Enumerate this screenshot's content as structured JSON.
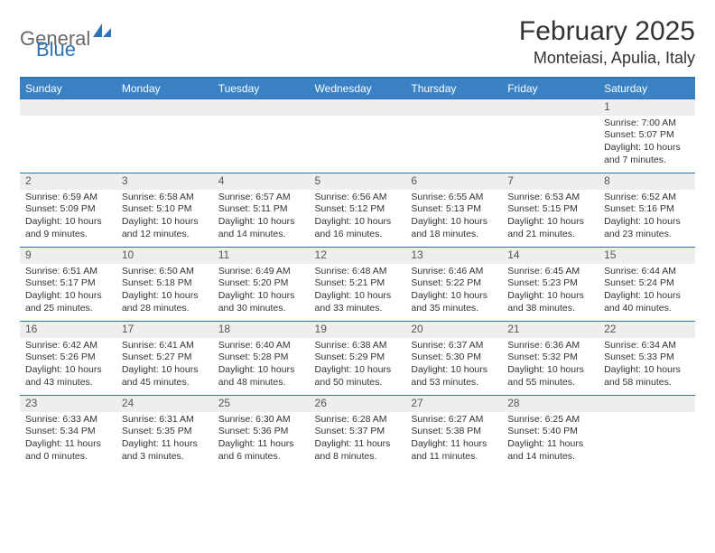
{
  "logo": {
    "part1": "General",
    "part2": "Blue"
  },
  "title": "February 2025",
  "location": "Monteiasi, Apulia, Italy",
  "colors": {
    "header_bg": "#3a82c4",
    "border": "#2d72b8",
    "daynum_bg": "#eeeeee",
    "text": "#333333",
    "logo_gray": "#6a6a6a",
    "logo_blue": "#2d72b8",
    "page_bg": "#ffffff"
  },
  "fonts": {
    "title_size_pt": 22,
    "location_size_pt": 13,
    "dayheader_size_pt": 9,
    "cell_size_pt": 8
  },
  "day_headers": [
    "Sunday",
    "Monday",
    "Tuesday",
    "Wednesday",
    "Thursday",
    "Friday",
    "Saturday"
  ],
  "weeks": [
    [
      null,
      null,
      null,
      null,
      null,
      null,
      {
        "n": "1",
        "sr": "7:00 AM",
        "ss": "5:07 PM",
        "dl": "10 hours and 7 minutes."
      }
    ],
    [
      {
        "n": "2",
        "sr": "6:59 AM",
        "ss": "5:09 PM",
        "dl": "10 hours and 9 minutes."
      },
      {
        "n": "3",
        "sr": "6:58 AM",
        "ss": "5:10 PM",
        "dl": "10 hours and 12 minutes."
      },
      {
        "n": "4",
        "sr": "6:57 AM",
        "ss": "5:11 PM",
        "dl": "10 hours and 14 minutes."
      },
      {
        "n": "5",
        "sr": "6:56 AM",
        "ss": "5:12 PM",
        "dl": "10 hours and 16 minutes."
      },
      {
        "n": "6",
        "sr": "6:55 AM",
        "ss": "5:13 PM",
        "dl": "10 hours and 18 minutes."
      },
      {
        "n": "7",
        "sr": "6:53 AM",
        "ss": "5:15 PM",
        "dl": "10 hours and 21 minutes."
      },
      {
        "n": "8",
        "sr": "6:52 AM",
        "ss": "5:16 PM",
        "dl": "10 hours and 23 minutes."
      }
    ],
    [
      {
        "n": "9",
        "sr": "6:51 AM",
        "ss": "5:17 PM",
        "dl": "10 hours and 25 minutes."
      },
      {
        "n": "10",
        "sr": "6:50 AM",
        "ss": "5:18 PM",
        "dl": "10 hours and 28 minutes."
      },
      {
        "n": "11",
        "sr": "6:49 AM",
        "ss": "5:20 PM",
        "dl": "10 hours and 30 minutes."
      },
      {
        "n": "12",
        "sr": "6:48 AM",
        "ss": "5:21 PM",
        "dl": "10 hours and 33 minutes."
      },
      {
        "n": "13",
        "sr": "6:46 AM",
        "ss": "5:22 PM",
        "dl": "10 hours and 35 minutes."
      },
      {
        "n": "14",
        "sr": "6:45 AM",
        "ss": "5:23 PM",
        "dl": "10 hours and 38 minutes."
      },
      {
        "n": "15",
        "sr": "6:44 AM",
        "ss": "5:24 PM",
        "dl": "10 hours and 40 minutes."
      }
    ],
    [
      {
        "n": "16",
        "sr": "6:42 AM",
        "ss": "5:26 PM",
        "dl": "10 hours and 43 minutes."
      },
      {
        "n": "17",
        "sr": "6:41 AM",
        "ss": "5:27 PM",
        "dl": "10 hours and 45 minutes."
      },
      {
        "n": "18",
        "sr": "6:40 AM",
        "ss": "5:28 PM",
        "dl": "10 hours and 48 minutes."
      },
      {
        "n": "19",
        "sr": "6:38 AM",
        "ss": "5:29 PM",
        "dl": "10 hours and 50 minutes."
      },
      {
        "n": "20",
        "sr": "6:37 AM",
        "ss": "5:30 PM",
        "dl": "10 hours and 53 minutes."
      },
      {
        "n": "21",
        "sr": "6:36 AM",
        "ss": "5:32 PM",
        "dl": "10 hours and 55 minutes."
      },
      {
        "n": "22",
        "sr": "6:34 AM",
        "ss": "5:33 PM",
        "dl": "10 hours and 58 minutes."
      }
    ],
    [
      {
        "n": "23",
        "sr": "6:33 AM",
        "ss": "5:34 PM",
        "dl": "11 hours and 0 minutes."
      },
      {
        "n": "24",
        "sr": "6:31 AM",
        "ss": "5:35 PM",
        "dl": "11 hours and 3 minutes."
      },
      {
        "n": "25",
        "sr": "6:30 AM",
        "ss": "5:36 PM",
        "dl": "11 hours and 6 minutes."
      },
      {
        "n": "26",
        "sr": "6:28 AM",
        "ss": "5:37 PM",
        "dl": "11 hours and 8 minutes."
      },
      {
        "n": "27",
        "sr": "6:27 AM",
        "ss": "5:38 PM",
        "dl": "11 hours and 11 minutes."
      },
      {
        "n": "28",
        "sr": "6:25 AM",
        "ss": "5:40 PM",
        "dl": "11 hours and 14 minutes."
      },
      null
    ]
  ],
  "labels": {
    "sunrise": "Sunrise: ",
    "sunset": "Sunset: ",
    "daylight": "Daylight: "
  }
}
